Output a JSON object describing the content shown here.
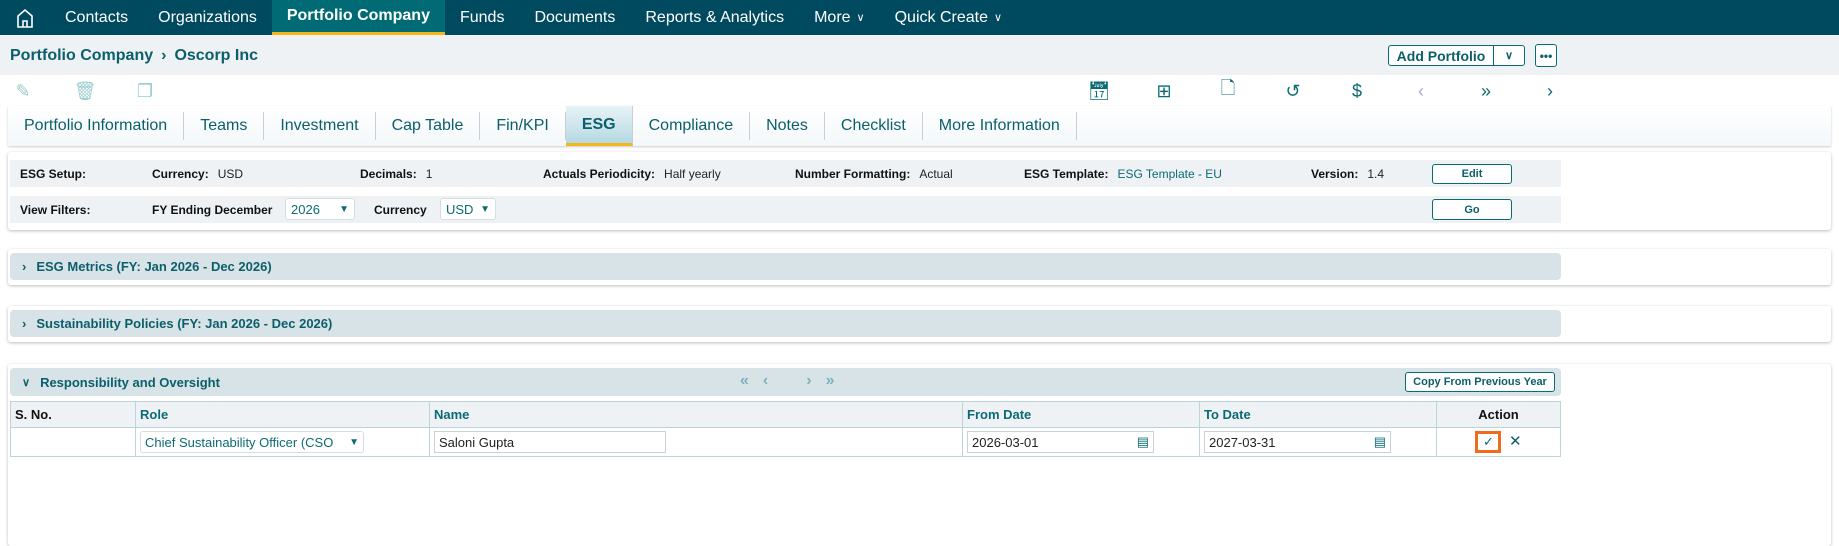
{
  "nav": {
    "items": [
      "Contacts",
      "Organizations",
      "Portfolio Company",
      "Funds",
      "Documents",
      "Reports & Analytics",
      "More",
      "Quick Create"
    ],
    "active": "Portfolio Company"
  },
  "breadcrumb": {
    "root": "Portfolio Company",
    "current": "Oscorp Inc"
  },
  "header": {
    "add_portfolio": "Add Portfolio"
  },
  "tabs": [
    "Portfolio Information",
    "Teams",
    "Investment",
    "Cap Table",
    "Fin/KPI",
    "ESG",
    "Compliance",
    "Notes",
    "Checklist",
    "More Information"
  ],
  "setup": {
    "title": "ESG Setup:",
    "currency_label": "Currency:",
    "currency": "USD",
    "decimals_label": "Decimals:",
    "decimals": "1",
    "periodicity_label": "Actuals Periodicity:",
    "periodicity": "Half yearly",
    "formatting_label": "Number Formatting:",
    "formatting": "Actual",
    "template_label": "ESG Template:",
    "template": "ESG Template - EU",
    "version_label": "Version:",
    "version": "1.4",
    "edit": "Edit"
  },
  "filters": {
    "title": "View Filters:",
    "fy_label": "FY Ending December",
    "fy": "2026",
    "currency_label": "Currency",
    "currency": "USD",
    "go": "Go"
  },
  "sections": {
    "metrics": "ESG Metrics (FY: Jan 2026 - Dec 2026)",
    "policies": "Sustainability Policies (FY: Jan 2026 - Dec 2026)",
    "oversight": "Responsibility and Oversight",
    "copy": "Copy From Previous Year"
  },
  "table": {
    "headers": [
      "S. No.",
      "Role",
      "Name",
      "From Date",
      "To Date",
      "Action"
    ],
    "row": {
      "role": "Chief Sustainability Officer (CSO",
      "name": "Saloni Gupta",
      "from": "2026-03-01",
      "to": "2027-03-31"
    }
  },
  "colors": {
    "nav": "#004a60",
    "accent": "#0b6b73",
    "highlight": "#f5b617",
    "focus": "#f26a1b"
  }
}
